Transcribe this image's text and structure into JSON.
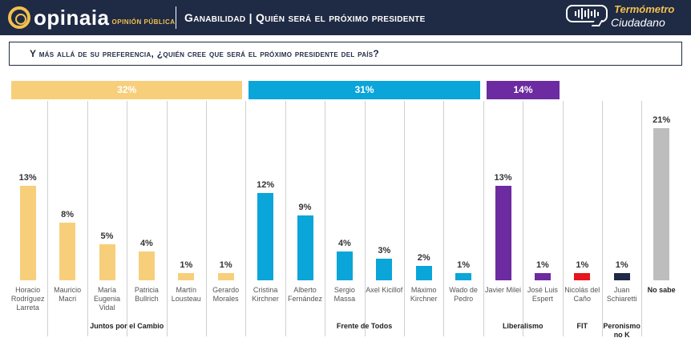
{
  "header": {
    "logo_text": "opinaia",
    "logo_sub": "OPINIÓN PÚBLICA",
    "title": "Ganabilidad | Quién será el próximo presidente",
    "brand_line1": "Termómetro",
    "brand_line2": "Ciudadano"
  },
  "question": "Y más allá de su preferencia, ¿quién cree que será el próximo presidente del país?",
  "colors": {
    "juntos": "#f7cf7b",
    "frente": "#0aa5d9",
    "liberalismo": "#6c2ba0",
    "fit": "#e4151b",
    "peronismo": "#1f2a44",
    "no_sabe": "#bdbdbd",
    "header_bg": "#1f2a44",
    "accent": "#f2c14e"
  },
  "chart_data": {
    "type": "bar",
    "unit": "%",
    "ylim": [
      0,
      21
    ],
    "groups": [
      {
        "name": "Juntos por el Cambio",
        "total": "32%",
        "color_key": "juntos"
      },
      {
        "name": "Frente de Todos",
        "total": "31%",
        "color_key": "frente"
      },
      {
        "name": "Liberalismo",
        "total": "14%",
        "color_key": "liberalismo"
      },
      {
        "name": "FIT",
        "total": "",
        "color_key": "fit"
      },
      {
        "name": "Peronismo no K",
        "total": "",
        "color_key": "peronismo"
      },
      {
        "name": "",
        "total": "",
        "color_key": "no_sabe"
      }
    ],
    "categories": [
      {
        "label": "Horacio Rodríguez Larreta",
        "value": 13,
        "group": 0
      },
      {
        "label": "Mauricio Macri",
        "value": 8,
        "group": 0
      },
      {
        "label": "María Eugenia Vidal",
        "value": 5,
        "group": 0
      },
      {
        "label": "Patricia Bullrich",
        "value": 4,
        "group": 0
      },
      {
        "label": "Martín Lousteau",
        "value": 1,
        "group": 0
      },
      {
        "label": "Gerardo Morales",
        "value": 1,
        "group": 0
      },
      {
        "label": "Cristina Kirchner",
        "value": 12,
        "group": 1
      },
      {
        "label": "Alberto Fernández",
        "value": 9,
        "group": 1
      },
      {
        "label": "Sergio Massa",
        "value": 4,
        "group": 1
      },
      {
        "label": "Axel Kicillof",
        "value": 3,
        "group": 1
      },
      {
        "label": "Máximo Kirchner",
        "value": 2,
        "group": 1
      },
      {
        "label": "Wado de Pedro",
        "value": 1,
        "group": 1
      },
      {
        "label": "Javier Milei",
        "value": 13,
        "group": 2
      },
      {
        "label": "José Luis Espert",
        "value": 1,
        "group": 2
      },
      {
        "label": "Nicolás del Caño",
        "value": 1,
        "group": 3
      },
      {
        "label": "Juan Schiaretti",
        "value": 1,
        "group": 4
      },
      {
        "label": "No sabe",
        "value": 21,
        "group": 5
      }
    ]
  }
}
